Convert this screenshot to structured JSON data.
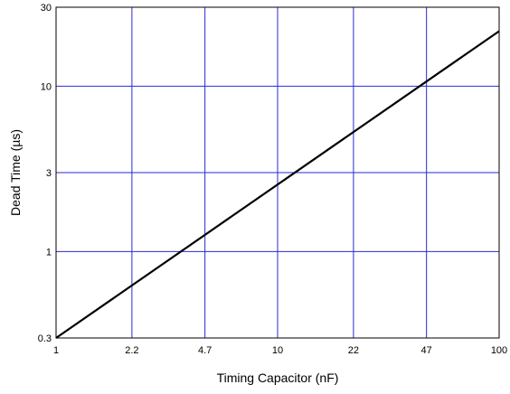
{
  "chart_data": {
    "type": "line",
    "title": "",
    "xlabel": "Timing Capacitor (nF)",
    "ylabel": "Dead Time (µs)",
    "xscale": "log",
    "yscale": "log",
    "xlim": [
      1,
      100
    ],
    "ylim": [
      0.3,
      30
    ],
    "grid": true,
    "legend": "none",
    "x_ticks": [
      {
        "value": 1,
        "label": "1"
      },
      {
        "value": 2.2,
        "label": "2.2"
      },
      {
        "value": 4.7,
        "label": "4.7"
      },
      {
        "value": 10,
        "label": "10"
      },
      {
        "value": 22,
        "label": "22"
      },
      {
        "value": 47,
        "label": "47"
      },
      {
        "value": 100,
        "label": "100"
      }
    ],
    "y_ticks": [
      {
        "value": 0.3,
        "label": "0.3"
      },
      {
        "value": 1,
        "label": "1"
      },
      {
        "value": 3,
        "label": "3"
      },
      {
        "value": 10,
        "label": "10"
      },
      {
        "value": 30,
        "label": "30"
      }
    ],
    "series": [
      {
        "x": [
          1,
          100
        ],
        "y": [
          0.3,
          21.5
        ]
      }
    ],
    "colors": {
      "line": "#000000",
      "grid": "#2a2ad0",
      "frame": "#000000"
    }
  }
}
